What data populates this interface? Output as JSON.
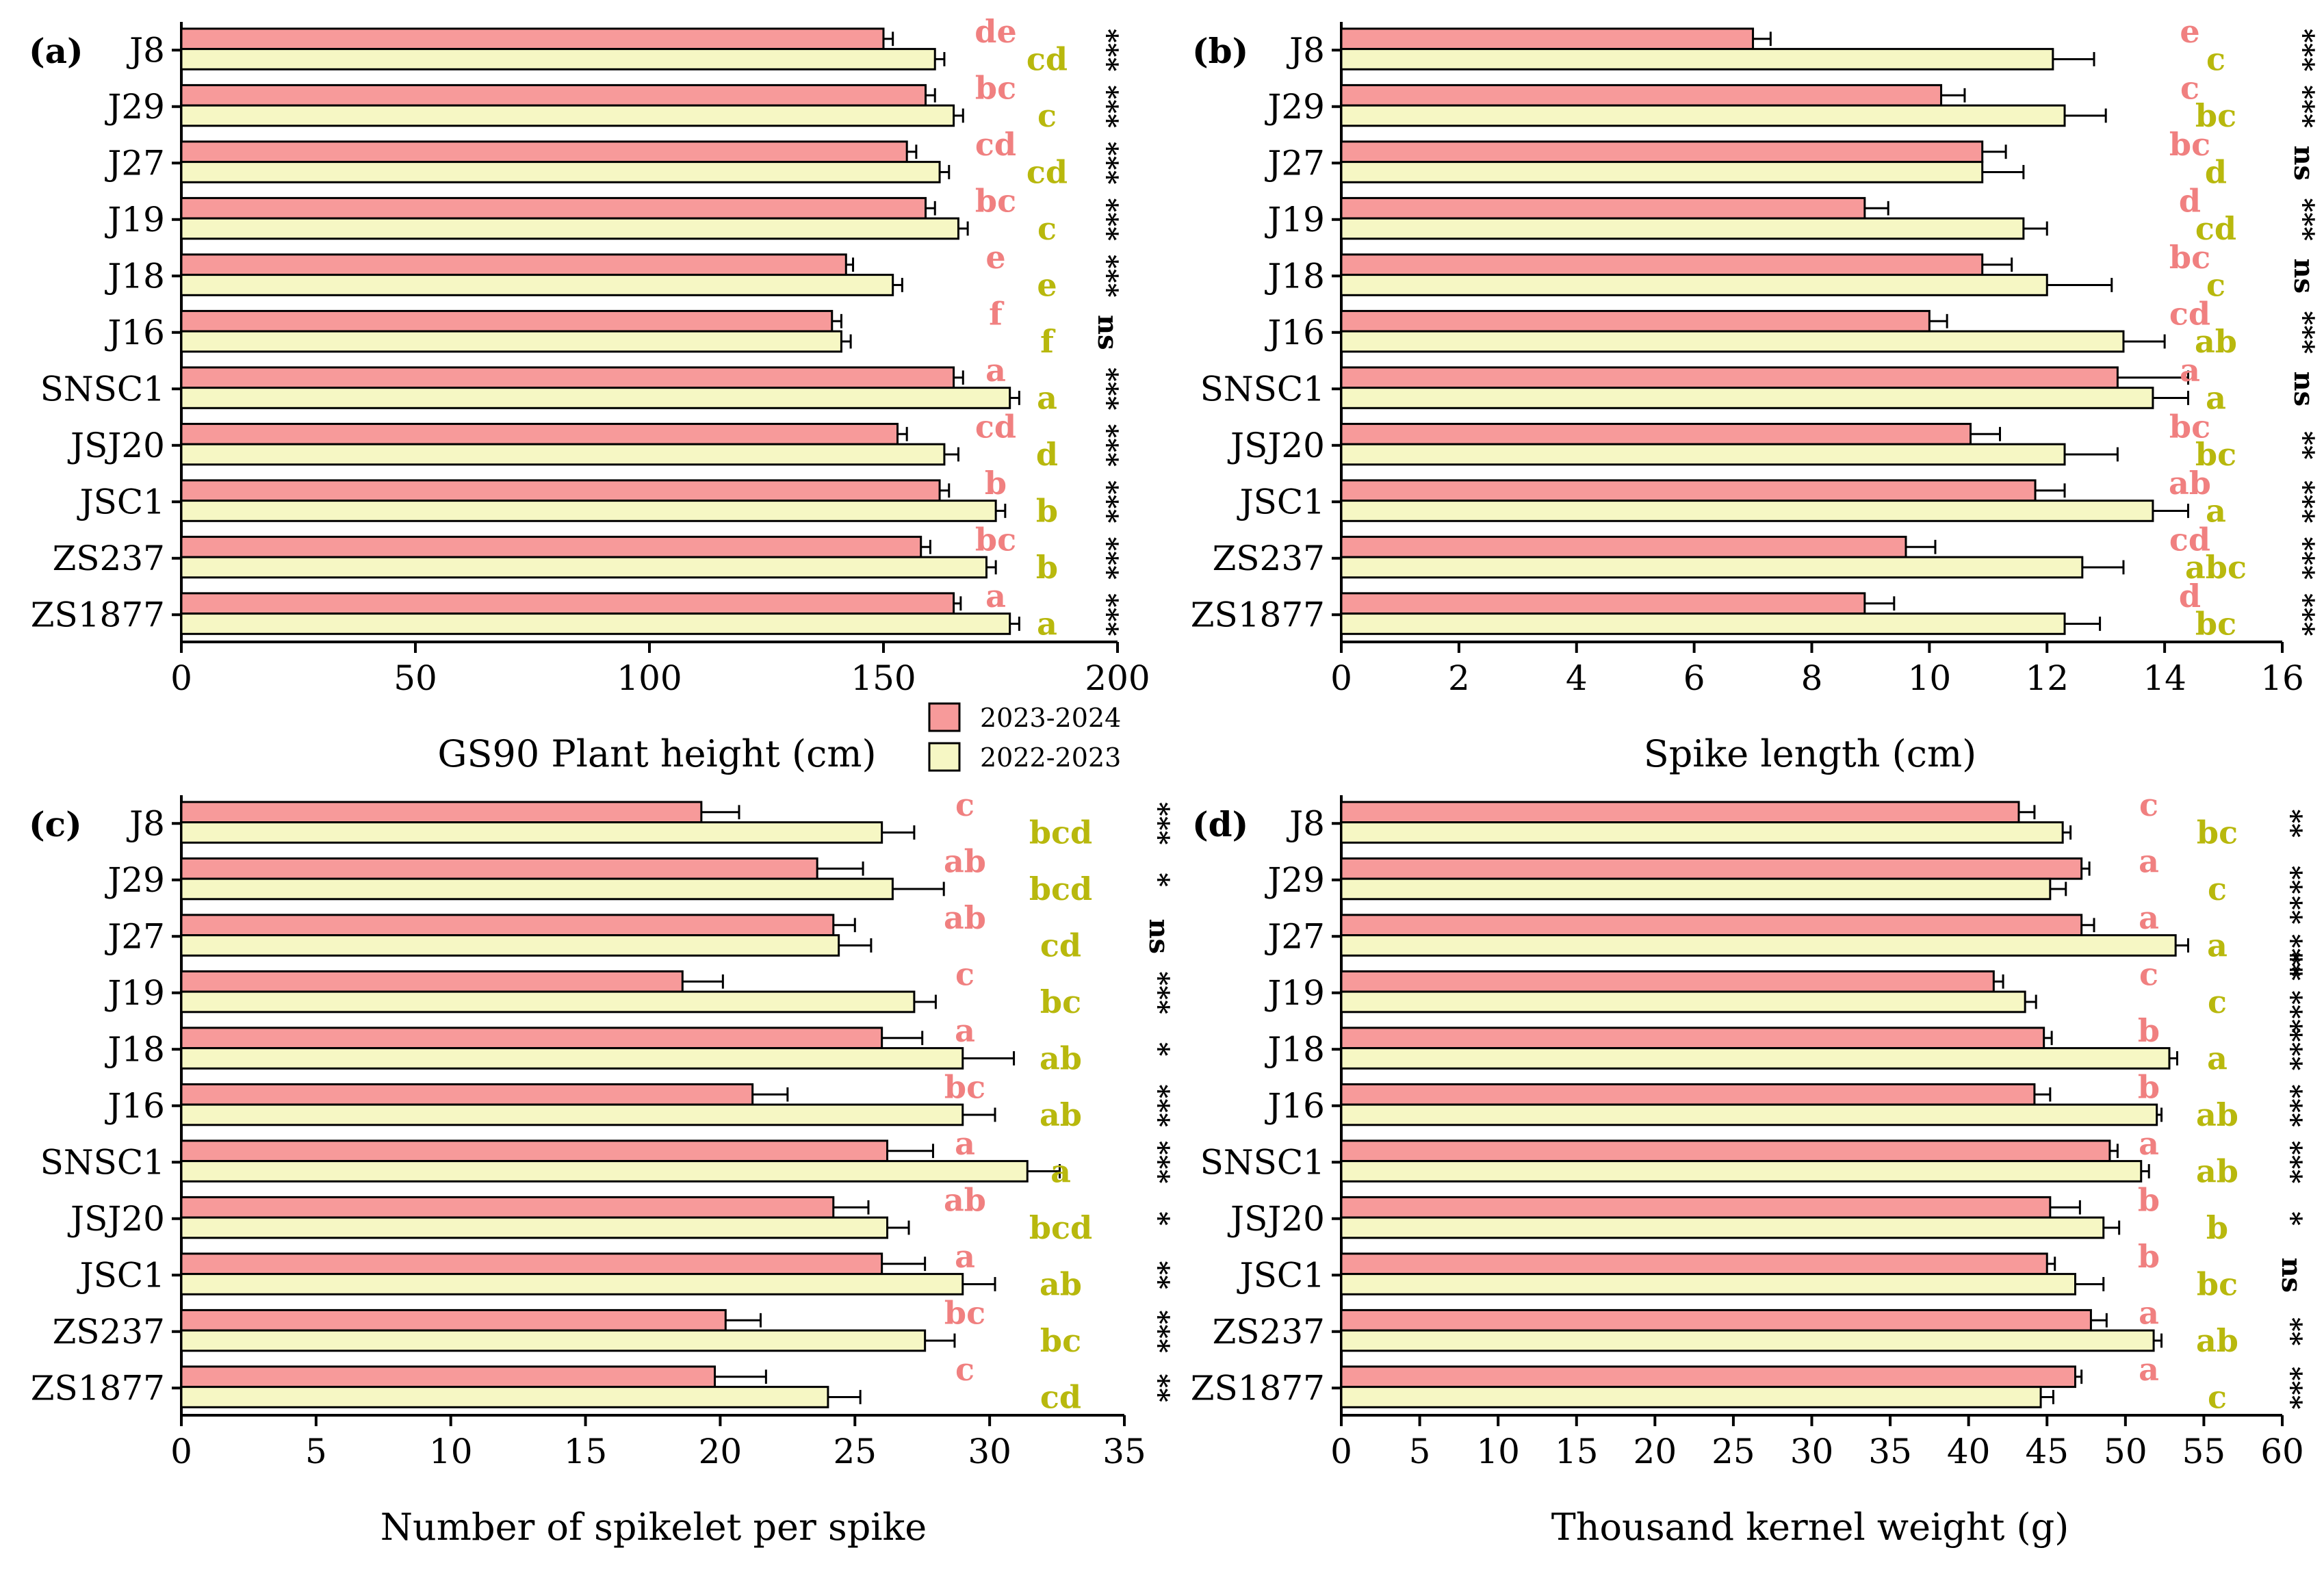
{
  "series_names": [
    "2023-2024",
    "2022-2023"
  ],
  "colors": {
    "series_2023_2024": "#f79a9a",
    "series_2022_2023": "#f6f7c4",
    "letters_2023_2024": "#f08080",
    "letters_2022_2023": "#b8b80d",
    "stroke": "#000000"
  },
  "chart_data": [
    {
      "panel": "(a)",
      "type": "bar",
      "orientation": "horizontal",
      "xlabel": "GS90 Plant height (cm)",
      "xlim": [
        0,
        200
      ],
      "xticks": [
        0,
        50,
        100,
        150,
        200
      ],
      "categories": [
        "J8",
        "J29",
        "J27",
        "J19",
        "J18",
        "J16",
        "SNSC1",
        "JSJ20",
        "JSC1",
        "ZS237",
        "ZS1877"
      ],
      "series": [
        {
          "name": "2023-2024",
          "values": [
            150,
            159,
            155,
            159,
            142,
            139,
            165,
            153,
            162,
            158,
            165
          ],
          "errors": [
            2,
            2,
            2,
            2,
            1.5,
            2,
            2,
            2,
            2,
            2,
            1.5
          ],
          "letters": [
            "de",
            "bc",
            "cd",
            "bc",
            "e",
            "f",
            "a",
            "cd",
            "b",
            "bc",
            "a"
          ]
        },
        {
          "name": "2022-2023",
          "values": [
            161,
            165,
            162,
            166,
            152,
            141,
            177,
            163,
            174,
            172,
            177
          ],
          "errors": [
            2,
            2,
            2,
            2,
            2,
            2,
            2,
            3,
            2,
            2,
            2
          ],
          "letters": [
            "cd",
            "c",
            "cd",
            "c",
            "e",
            "f",
            "a",
            "d",
            "b",
            "b",
            "a"
          ]
        }
      ],
      "significance": [
        "***",
        "***",
        "***",
        "***",
        "***",
        "ns",
        "***",
        "***",
        "***",
        "***",
        "***"
      ]
    },
    {
      "panel": "(b)",
      "type": "bar",
      "orientation": "horizontal",
      "xlabel": "Spike length (cm)",
      "xlim": [
        0,
        16
      ],
      "xticks": [
        0,
        2,
        4,
        6,
        8,
        10,
        12,
        14,
        16
      ],
      "categories": [
        "J8",
        "J29",
        "J27",
        "J19",
        "J18",
        "J16",
        "SNSC1",
        "JSJ20",
        "JSC1",
        "ZS237",
        "ZS1877"
      ],
      "series": [
        {
          "name": "2023-2024",
          "values": [
            7.0,
            10.2,
            10.9,
            8.9,
            10.9,
            10.0,
            13.2,
            10.7,
            11.8,
            9.6,
            8.9
          ],
          "errors": [
            0.3,
            0.4,
            0.4,
            0.4,
            0.5,
            0.3,
            1.2,
            0.5,
            0.5,
            0.5,
            0.5
          ],
          "letters": [
            "e",
            "c",
            "bc",
            "d",
            "bc",
            "cd",
            "a",
            "bc",
            "ab",
            "cd",
            "d"
          ]
        },
        {
          "name": "2022-2023",
          "values": [
            12.1,
            12.3,
            10.9,
            11.6,
            12.0,
            13.3,
            13.8,
            12.3,
            13.8,
            12.6,
            12.3
          ],
          "errors": [
            0.7,
            0.7,
            0.7,
            0.4,
            1.1,
            0.7,
            0.6,
            0.9,
            0.6,
            0.7,
            0.6
          ],
          "letters": [
            "c",
            "bc",
            "d",
            "cd",
            "c",
            "ab",
            "a",
            "bc",
            "a",
            "abc",
            "bc"
          ]
        }
      ],
      "significance": [
        "***",
        "***",
        "ns",
        "***",
        "ns",
        "***",
        "ns",
        "**",
        "***",
        "***",
        "***"
      ]
    },
    {
      "panel": "(c)",
      "type": "bar",
      "orientation": "horizontal",
      "xlabel": "Number of spikelet per spike",
      "xlim": [
        0,
        35
      ],
      "xticks": [
        0,
        5,
        10,
        15,
        20,
        25,
        30,
        35
      ],
      "categories": [
        "J8",
        "J29",
        "J27",
        "J19",
        "J18",
        "J16",
        "SNSC1",
        "JSJ20",
        "JSC1",
        "ZS237",
        "ZS1877"
      ],
      "series": [
        {
          "name": "2023-2024",
          "values": [
            19.3,
            23.6,
            24.2,
            18.6,
            26.0,
            21.2,
            26.2,
            24.2,
            26.0,
            20.2,
            19.8
          ],
          "errors": [
            1.4,
            1.7,
            0.8,
            1.5,
            1.5,
            1.3,
            1.7,
            1.3,
            1.6,
            1.3,
            1.9
          ],
          "letters": [
            "c",
            "ab",
            "ab",
            "c",
            "a",
            "bc",
            "a",
            "ab",
            "a",
            "bc",
            "c"
          ]
        },
        {
          "name": "2022-2023",
          "values": [
            26.0,
            26.4,
            24.4,
            27.2,
            29.0,
            29.0,
            31.4,
            26.2,
            29.0,
            27.6,
            24.0
          ],
          "errors": [
            1.2,
            1.9,
            1.2,
            0.8,
            1.9,
            1.2,
            1.2,
            0.8,
            1.2,
            1.1,
            1.2
          ],
          "letters": [
            "bcd",
            "bcd",
            "cd",
            "bc",
            "ab",
            "ab",
            "a",
            "bcd",
            "ab",
            "bc",
            "cd"
          ]
        }
      ],
      "significance": [
        "***",
        "*",
        "ns",
        "***",
        "*",
        "***",
        "***",
        "*",
        "**",
        "***",
        "**"
      ]
    },
    {
      "panel": "(d)",
      "type": "bar",
      "orientation": "horizontal",
      "xlabel": "Thousand kernel weight (g)",
      "xlim": [
        0,
        60
      ],
      "xticks": [
        0,
        5,
        10,
        15,
        20,
        25,
        30,
        35,
        40,
        45,
        50,
        55,
        60
      ],
      "categories": [
        "J8",
        "J29",
        "J27",
        "J19",
        "J18",
        "J16",
        "SNSC1",
        "JSJ20",
        "JSC1",
        "ZS237",
        "ZS1877"
      ],
      "series": [
        {
          "name": "2023-2024",
          "values": [
            43.2,
            47.2,
            47.2,
            41.6,
            44.8,
            44.2,
            49.0,
            45.2,
            45.0,
            47.8,
            46.8
          ],
          "errors": [
            1.0,
            0.5,
            0.8,
            0.6,
            0.5,
            1.0,
            0.5,
            1.9,
            0.5,
            1.0,
            0.4
          ],
          "letters": [
            "c",
            "a",
            "a",
            "c",
            "b",
            "b",
            "a",
            "b",
            "b",
            "a",
            "a"
          ]
        },
        {
          "name": "2022-2023",
          "values": [
            46.0,
            45.2,
            53.2,
            43.6,
            52.8,
            52.0,
            51.0,
            48.6,
            46.8,
            51.8,
            44.6
          ],
          "errors": [
            0.5,
            1.0,
            0.8,
            0.7,
            0.5,
            0.3,
            0.5,
            1.0,
            1.8,
            0.5,
            0.8
          ],
          "letters": [
            "bc",
            "c",
            "a",
            "c",
            "a",
            "ab",
            "ab",
            "b",
            "bc",
            "ab",
            "c"
          ]
        }
      ],
      "significance": [
        "**",
        "**",
        "** ***",
        "** ***",
        "***",
        "***",
        "***",
        "*",
        "ns",
        "**",
        "***"
      ]
    }
  ]
}
